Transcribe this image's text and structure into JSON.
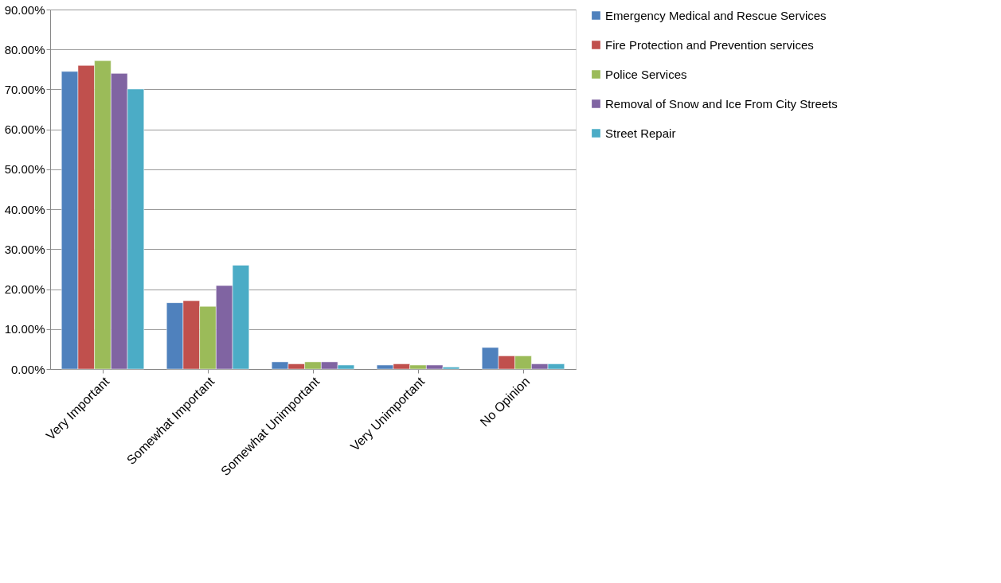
{
  "chart_data": {
    "type": "bar",
    "categories": [
      "Very Important",
      "Somewhat Important",
      "Somewhat Unimportant",
      "Very Unimportant",
      "No Opinion"
    ],
    "series": [
      {
        "name": "Emergency Medical and Rescue Services",
        "color": "#4f81bd",
        "values": [
          74.5,
          16.6,
          1.8,
          1.0,
          5.4
        ]
      },
      {
        "name": "Fire Protection and Prevention services",
        "color": "#c0504d",
        "values": [
          76.0,
          17.1,
          1.3,
          1.3,
          3.3
        ]
      },
      {
        "name": "Police Services",
        "color": "#9bbb59",
        "values": [
          77.2,
          15.7,
          1.8,
          1.0,
          3.3
        ]
      },
      {
        "name": "Removal of Snow and Ice From City Streets",
        "color": "#8064a2",
        "values": [
          74.0,
          20.9,
          1.8,
          1.0,
          1.3
        ]
      },
      {
        "name": "Street Repair",
        "color": "#4bacc6",
        "values": [
          70.1,
          26.0,
          1.0,
          0.5,
          1.3
        ]
      }
    ],
    "ylim": [
      0,
      90
    ],
    "yticks": [
      {
        "value": 0,
        "label": "0.00%"
      },
      {
        "value": 10,
        "label": "10.00%"
      },
      {
        "value": 20,
        "label": "20.00%"
      },
      {
        "value": 30,
        "label": "30.00%"
      },
      {
        "value": 40,
        "label": "40.00%"
      },
      {
        "value": 50,
        "label": "50.00%"
      },
      {
        "value": 60,
        "label": "60.00%"
      },
      {
        "value": 70,
        "label": "70.00%"
      },
      {
        "value": 80,
        "label": "80.00%"
      },
      {
        "value": 90,
        "label": "90.00%"
      }
    ],
    "grid": "y",
    "legend": "right"
  }
}
